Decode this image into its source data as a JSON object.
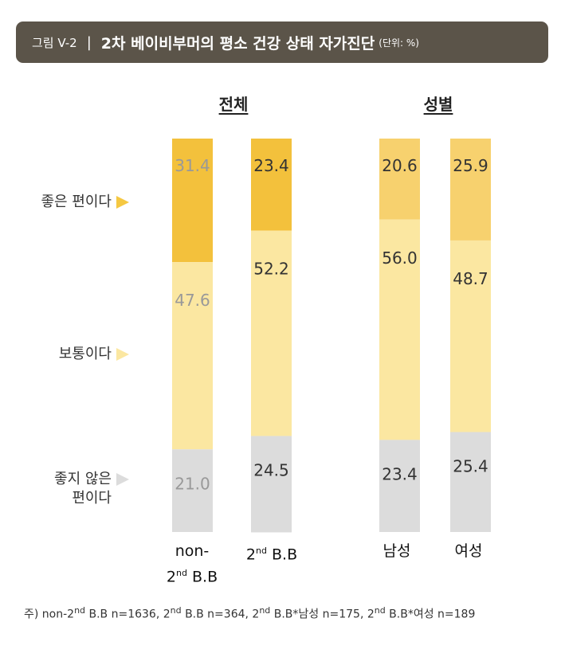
{
  "header": {
    "figure_number": "그림 V-2",
    "separator": "|",
    "title": "2차 베이비부머의 평소 건강 상태 자가진단",
    "unit": "(단위: %)"
  },
  "groups": [
    "전체",
    "성별"
  ],
  "legend": {
    "good": {
      "label": "좋은 편이다",
      "color": "#f5c842"
    },
    "normal": {
      "label": "보통이다",
      "color": "#fbe7a1"
    },
    "bad": {
      "label_line1": "좋지 않은",
      "label_line2": "편이다",
      "color": "#dcdcdc"
    }
  },
  "categories": {
    "c0_line1": "non-",
    "c0_line2_sup": "nd",
    "c0_line2_pre": "2",
    "c0_line2_post": " B.B",
    "c1_pre": "2",
    "c1_sup": "nd",
    "c1_post": " B.B",
    "c2": "남성",
    "c3": "여성"
  },
  "chart_data": {
    "type": "bar",
    "stacked": true,
    "orientation": "vertical",
    "categories": [
      "non-2nd B.B",
      "2nd B.B",
      "남성",
      "여성"
    ],
    "category_groups": {
      "전체": [
        "non-2nd B.B",
        "2nd B.B"
      ],
      "성별": [
        "남성",
        "여성"
      ]
    },
    "series": [
      {
        "name": "좋은 편이다",
        "values": [
          31.4,
          23.4,
          20.6,
          25.9
        ]
      },
      {
        "name": "보통이다",
        "values": [
          47.6,
          52.2,
          56.0,
          48.7
        ]
      },
      {
        "name": "좋지 않은 편이다",
        "values": [
          21.0,
          24.5,
          23.4,
          25.4
        ]
      }
    ],
    "bar_colors": [
      [
        "#f3c13c",
        "#fbe7a1",
        "#dcdcdc"
      ],
      [
        "#f3c13c",
        "#fbe7a1",
        "#dcdcdc"
      ],
      [
        "#f7d16e",
        "#fbe7a1",
        "#dcdcdc"
      ],
      [
        "#f7d16e",
        "#fbe7a1",
        "#dcdcdc"
      ]
    ],
    "label_colors": [
      "#999999",
      "#333333",
      "#333333",
      "#333333"
    ],
    "ylim": [
      0,
      100
    ],
    "title": "2차 베이비부머의 평소 건강 상태 자가진단",
    "unit": "%"
  },
  "footnote": {
    "p1": "주) non-2",
    "s1": "nd",
    "p2": " B.B n=1636, 2",
    "s2": "nd",
    "p3": " B.B n=364, 2",
    "s3": "nd",
    "p4": " B.B*남성 n=175, 2",
    "s4": "nd",
    "p5": " B.B*여성 n=189"
  }
}
